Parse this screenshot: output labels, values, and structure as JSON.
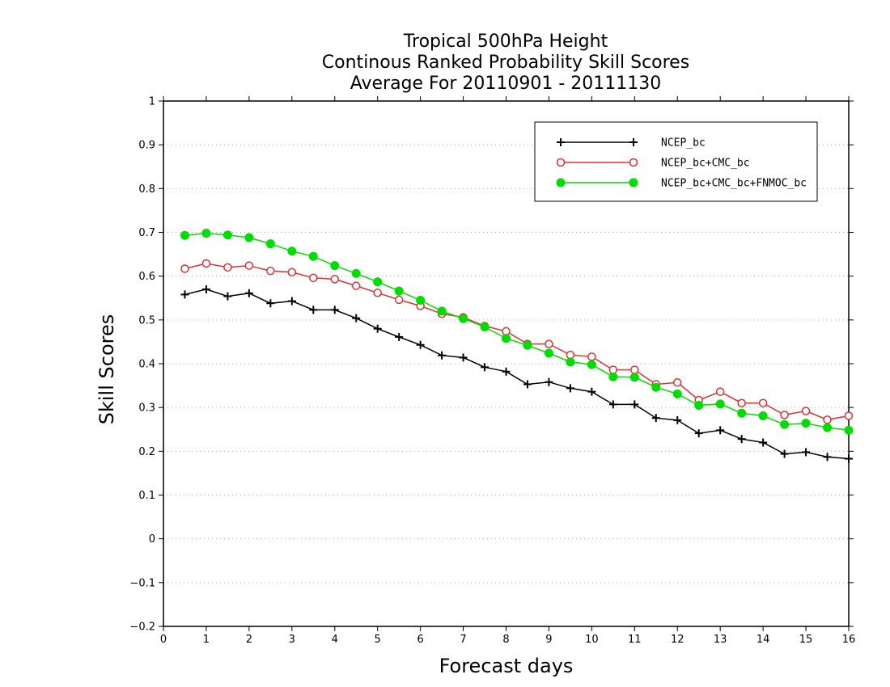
{
  "chart_data": {
    "type": "line",
    "title": [
      "Tropical 500hPa Height",
      "Continous Ranked Probability Skill Scores",
      "Average For 20110901 - 20111130"
    ],
    "xlabel": "Forecast days",
    "ylabel": "Skill Scores",
    "xlim": [
      0,
      16
    ],
    "ylim": [
      -0.2,
      1
    ],
    "xticks": [
      "0",
      "1",
      "2",
      "3",
      "4",
      "5",
      "6",
      "7",
      "8",
      "9",
      "10",
      "11",
      "12",
      "13",
      "14",
      "15",
      "16"
    ],
    "yticks": [
      "1",
      "0.9",
      "0.8",
      "0.7",
      "0.6",
      "0.5",
      "0.4",
      "0.3",
      "0.2",
      "0.1",
      "0",
      "-0.1",
      "-0.2"
    ],
    "grid": "horizontal-dotted",
    "legend_position": "top-right",
    "x": [
      0.5,
      1,
      1.5,
      2,
      2.5,
      3,
      3.5,
      4,
      4.5,
      5,
      5.5,
      6,
      6.5,
      7,
      7.5,
      8,
      8.5,
      9,
      9.5,
      10,
      10.5,
      11,
      11.5,
      12,
      12.5,
      13,
      13.5,
      14,
      14.5,
      15,
      15.5,
      16
    ],
    "series": [
      {
        "name": "NCEP_bc",
        "color": "#000000",
        "marker": "plus",
        "values": [
          0.558,
          0.57,
          0.554,
          0.561,
          0.538,
          0.543,
          0.523,
          0.523,
          0.504,
          0.48,
          0.461,
          0.443,
          0.419,
          0.414,
          0.392,
          0.382,
          0.353,
          0.358,
          0.344,
          0.336,
          0.307,
          0.307,
          0.276,
          0.271,
          0.241,
          0.248,
          0.228,
          0.22,
          0.194,
          0.198,
          0.187,
          0.183
        ]
      },
      {
        "name": "NCEP_bc+CMC_bc",
        "color": "#e03030",
        "marker": "open-circle",
        "values": [
          0.617,
          0.629,
          0.62,
          0.624,
          0.612,
          0.609,
          0.596,
          0.593,
          0.578,
          0.562,
          0.546,
          0.532,
          0.514,
          0.506,
          0.486,
          0.474,
          0.445,
          0.445,
          0.42,
          0.416,
          0.386,
          0.386,
          0.353,
          0.357,
          0.317,
          0.336,
          0.31,
          0.31,
          0.283,
          0.292,
          0.272,
          0.281
        ]
      },
      {
        "name": "NCEP_bc+CMC_bc+FNMOC_bc",
        "color": "#00dd00",
        "marker": "filled-circle",
        "values": [
          0.693,
          0.698,
          0.694,
          0.688,
          0.674,
          0.657,
          0.645,
          0.624,
          0.606,
          0.587,
          0.566,
          0.545,
          0.52,
          0.503,
          0.484,
          0.458,
          0.442,
          0.424,
          0.404,
          0.398,
          0.37,
          0.369,
          0.346,
          0.331,
          0.305,
          0.308,
          0.287,
          0.281,
          0.261,
          0.264,
          0.254,
          0.248
        ]
      }
    ]
  }
}
